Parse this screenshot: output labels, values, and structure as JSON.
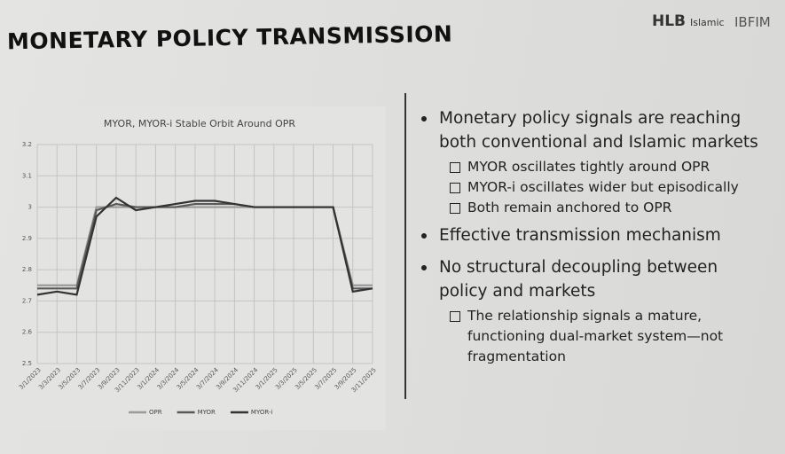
{
  "header": {
    "title": "MONETARY POLICY TRANSMISSION",
    "logos": [
      "HLB",
      "Islamic",
      "IBFIM"
    ]
  },
  "chart_data": {
    "type": "line",
    "title": "MYOR, MYOR-i Stable Orbit Around OPR",
    "categories": [
      "3/1/2023",
      "3/3/2023",
      "3/5/2023",
      "3/7/2023",
      "3/9/2023",
      "3/11/2023",
      "3/1/2024",
      "3/3/2024",
      "3/5/2024",
      "3/7/2024",
      "3/9/2024",
      "3/11/2024",
      "3/1/2025",
      "3/3/2025",
      "3/5/2025",
      "3/7/2025",
      "3/9/2025",
      "3/11/2025"
    ],
    "series": [
      {
        "name": "OPR",
        "color": "#9a9a9a",
        "values": [
          2.75,
          2.75,
          2.75,
          3,
          3,
          3,
          3,
          3,
          3,
          3,
          3,
          3,
          3,
          3,
          3,
          3,
          2.75,
          2.75
        ]
      },
      {
        "name": "MYOR",
        "color": "#5a5a5a",
        "values": [
          2.74,
          2.74,
          2.74,
          2.99,
          3.01,
          3.0,
          3.0,
          3.0,
          3.01,
          3.01,
          3.01,
          3.0,
          3.0,
          3.0,
          3.0,
          3.0,
          2.74,
          2.74
        ]
      },
      {
        "name": "MYOR-i",
        "color": "#333333",
        "values": [
          2.72,
          2.73,
          2.72,
          2.97,
          3.03,
          2.99,
          3.0,
          3.01,
          3.02,
          3.02,
          3.01,
          3.0,
          3.0,
          3.0,
          3.0,
          3.0,
          2.73,
          2.74
        ]
      }
    ],
    "ylim": [
      2.5,
      3.2
    ],
    "yticks": [
      2.5,
      2.6,
      2.7,
      2.8,
      2.9,
      3,
      3.1,
      3.2
    ],
    "grid": true
  },
  "bullets": [
    {
      "text": "Monetary policy signals are reaching both conventional and Islamic markets",
      "subs": [
        "MYOR oscillates tightly around OPR",
        "MYOR-i oscillates wider but episodically",
        "Both remain anchored to OPR"
      ]
    },
    {
      "text": "Effective transmission mechanism",
      "subs": []
    },
    {
      "text": "No structural decoupling between policy and markets",
      "subs": [
        "The relationship signals a mature, functioning dual-market system—not fragmentation"
      ]
    }
  ]
}
